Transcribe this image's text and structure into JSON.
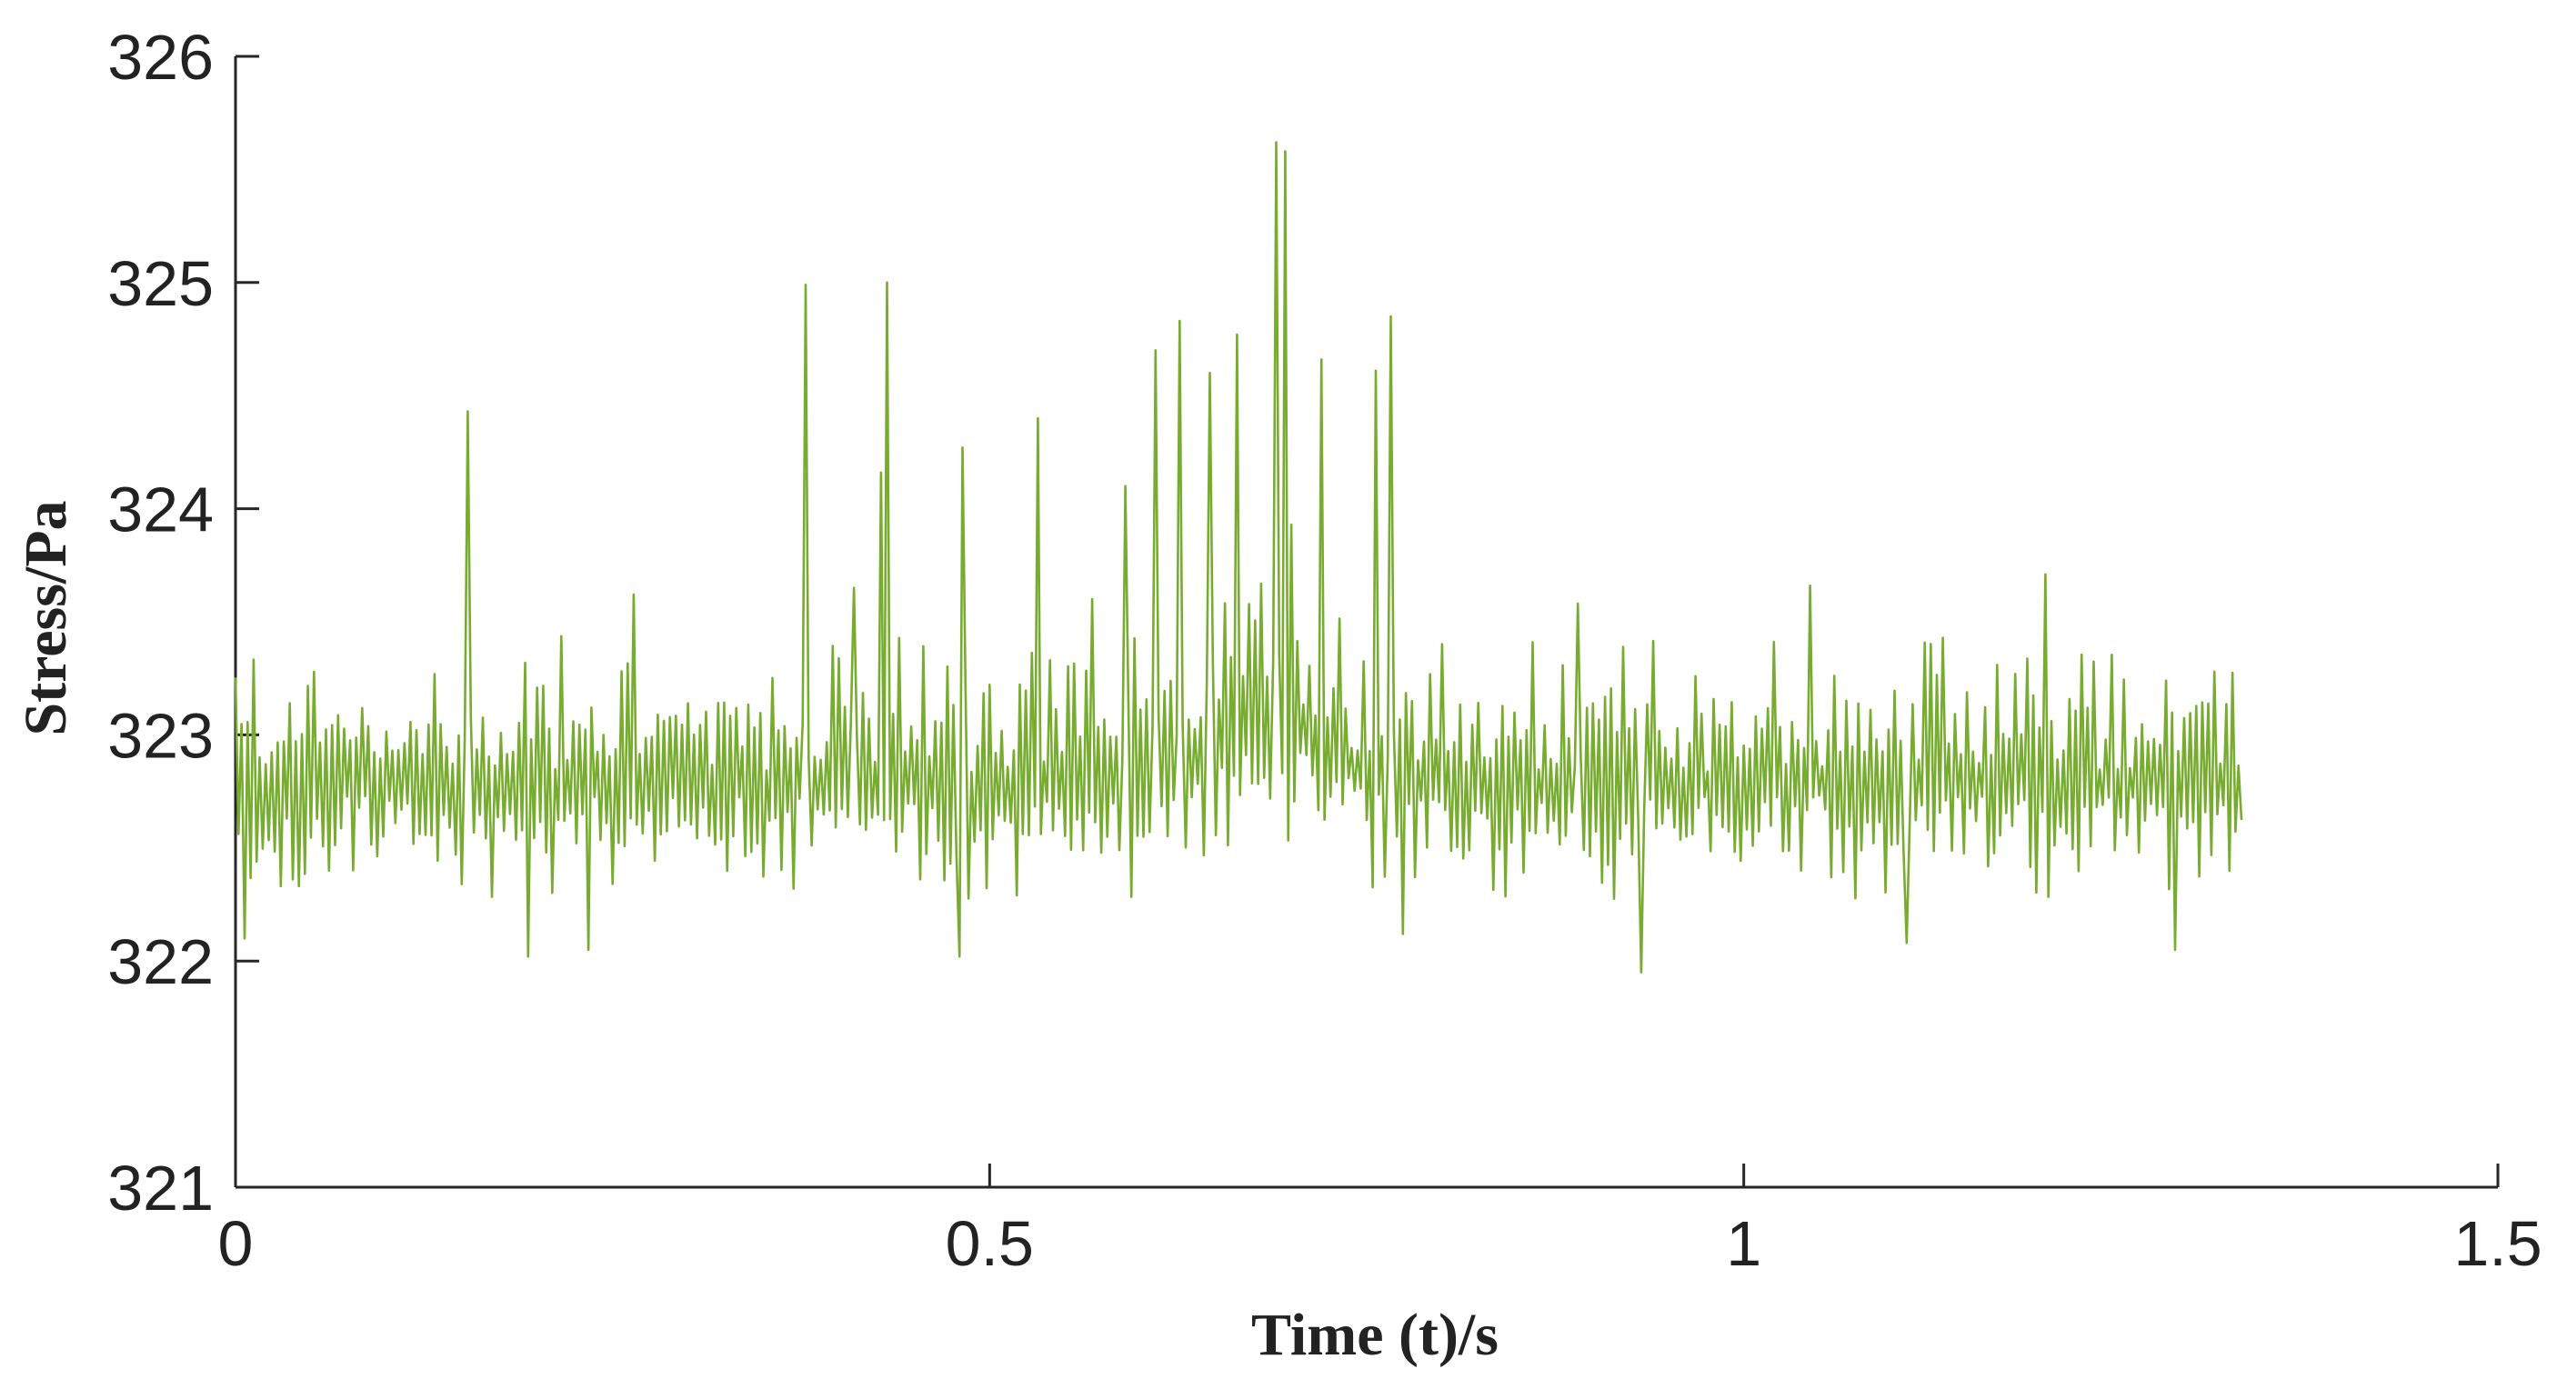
{
  "chart_data": {
    "type": "line",
    "title": "",
    "xlabel": "Time (t)/s",
    "ylabel": "Stress/Pa",
    "xlim": [
      0,
      1.5
    ],
    "ylim": [
      321,
      326
    ],
    "xticks": [
      0,
      0.5,
      1,
      1.5
    ],
    "xtick_labels": [
      "0",
      "0.5",
      "1",
      "1.5"
    ],
    "yticks": [
      321,
      322,
      323,
      324,
      325,
      326
    ],
    "ytick_labels": [
      "321",
      "322",
      "323",
      "324",
      "325",
      "326"
    ],
    "grid": false,
    "legend": "none",
    "series_color": "#77AC30",
    "series": [
      {
        "sample_interval_s": 0.002,
        "x_start": 0,
        "x_end": 1.33,
        "baseline": 322.78,
        "oscillation_high": 323.45,
        "oscillation_low": 322.25,
        "peaks": [
          {
            "x": 0.006,
            "y": 323.4
          },
          {
            "x": 0.154,
            "y": 324.43
          },
          {
            "x": 0.264,
            "y": 323.62
          },
          {
            "x": 0.378,
            "y": 324.99
          },
          {
            "x": 0.41,
            "y": 323.65
          },
          {
            "x": 0.428,
            "y": 324.16
          },
          {
            "x": 0.432,
            "y": 325.0
          },
          {
            "x": 0.482,
            "y": 324.27
          },
          {
            "x": 0.532,
            "y": 324.4
          },
          {
            "x": 0.568,
            "y": 323.6
          },
          {
            "x": 0.59,
            "y": 324.1
          },
          {
            "x": 0.61,
            "y": 324.7
          },
          {
            "x": 0.626,
            "y": 324.83
          },
          {
            "x": 0.646,
            "y": 324.6
          },
          {
            "x": 0.664,
            "y": 324.77
          },
          {
            "x": 0.69,
            "y": 325.62
          },
          {
            "x": 0.696,
            "y": 325.58
          },
          {
            "x": 0.7,
            "y": 323.93
          },
          {
            "x": 0.72,
            "y": 324.66
          },
          {
            "x": 0.756,
            "y": 324.61
          },
          {
            "x": 0.766,
            "y": 324.85
          },
          {
            "x": 0.89,
            "y": 323.58
          },
          {
            "x": 1.044,
            "y": 323.66
          },
          {
            "x": 1.2,
            "y": 323.71
          }
        ],
        "troughs": [
          {
            "x": 0.006,
            "y": 322.1
          },
          {
            "x": 0.194,
            "y": 322.02
          },
          {
            "x": 0.234,
            "y": 322.05
          },
          {
            "x": 0.48,
            "y": 322.02
          },
          {
            "x": 0.774,
            "y": 322.12
          },
          {
            "x": 0.932,
            "y": 321.95
          },
          {
            "x": 1.108,
            "y": 322.08
          },
          {
            "x": 1.286,
            "y": 322.05
          }
        ]
      }
    ]
  }
}
